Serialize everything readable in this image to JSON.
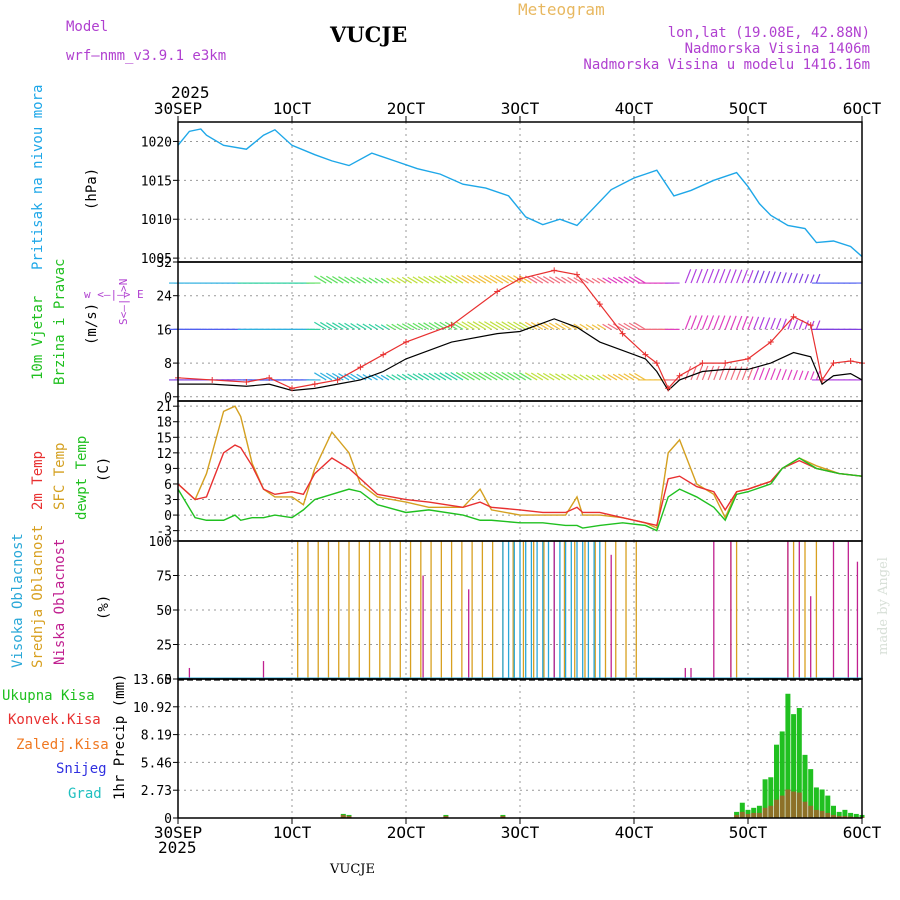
{
  "header": {
    "model_label": "Model",
    "model_name": "wrf—nmm_v3.9.1 e3km",
    "title": "VUCJE",
    "product": "Meteogram",
    "coords": "lon,lat (19.08E, 42.88N)",
    "elevation": "Nadmorska Visina 1406m",
    "model_elevation": "Nadmorska Visina u modelu 1416.16m",
    "year": "2025",
    "footer_station": "VUCJE",
    "credit": "made by Angel"
  },
  "colors": {
    "pressure": "#1ea7e8",
    "wind_speed_max": "#e83030",
    "wind_speed": "#000000",
    "t2m": "#e83030",
    "tsfc": "#d4a020",
    "dewpt": "#20c020",
    "cloud_high": "#2aa8d8",
    "cloud_mid": "#d8a020",
    "cloud_low": "#c02090",
    "precip_total": "#20c020",
    "precip_conv": "#e83030",
    "precip_frozen": "#f07820",
    "snow": "#3030e0",
    "hail": "#20c0c0"
  },
  "panel_labels": {
    "pressure": [
      "Pritisak na nivou mora",
      "(hPa)"
    ],
    "wind": [
      "10m Vjetar",
      "Brzina i Pravac",
      "(m/s)"
    ],
    "wind_compass": "w  <—|—>  E",
    "wind_compass_v": "S<—|—>N",
    "temp": [
      "2m Temp",
      "SFC Temp",
      "dewpt Temp",
      "(C)"
    ],
    "cloud": [
      "Visoka Oblacnost",
      "Srednja Oblacnost",
      "Niska Oblacnost",
      "(%)"
    ],
    "precip_legend": [
      "Ukupna Kisa",
      "Konvek.Kisa",
      "Zaledj.Kisa",
      "Snijeg",
      "Grad"
    ],
    "precip_axis": "1hr Precip (mm)"
  },
  "chart_data": {
    "type": "meteogram",
    "x_ticks": [
      "30SEP",
      "1OCT",
      "2OCT",
      "3OCT",
      "4OCT",
      "5OCT",
      "6OCT"
    ],
    "x_range_days": [
      0,
      6
    ],
    "pressure": {
      "ylabel": "(hPa)",
      "ylim": [
        1004.5,
        1022.5
      ],
      "yticks": [
        1005,
        1010,
        1015,
        1020
      ],
      "x": [
        0,
        0.1,
        0.2,
        0.25,
        0.4,
        0.6,
        0.75,
        0.85,
        1.0,
        1.2,
        1.35,
        1.5,
        1.7,
        1.9,
        2.1,
        2.3,
        2.5,
        2.7,
        2.9,
        3.05,
        3.2,
        3.35,
        3.5,
        3.65,
        3.8,
        4.0,
        4.1,
        4.2,
        4.35,
        4.5,
        4.7,
        4.9,
        5.0,
        5.1,
        5.2,
        5.35,
        5.5,
        5.6,
        5.75,
        5.9,
        6.0
      ],
      "values": [
        1019.5,
        1021.3,
        1021.6,
        1020.8,
        1019.5,
        1019.0,
        1020.8,
        1021.5,
        1019.5,
        1018.3,
        1017.5,
        1016.9,
        1018.5,
        1017.5,
        1016.5,
        1015.8,
        1014.5,
        1014.0,
        1013.0,
        1010.3,
        1009.3,
        1010.0,
        1009.2,
        1011.5,
        1013.8,
        1015.3,
        1015.8,
        1016.3,
        1013.0,
        1013.7,
        1015.0,
        1016.0,
        1014.2,
        1012.0,
        1010.5,
        1009.2,
        1008.8,
        1007.0,
        1007.2,
        1006.5,
        1005.2
      ]
    },
    "wind": {
      "ylabel": "(m/s)",
      "ylim": [
        -1,
        32
      ],
      "yticks": [
        0,
        8,
        16,
        24,
        32
      ],
      "x": [
        0,
        0.3,
        0.6,
        0.8,
        1.0,
        1.2,
        1.4,
        1.6,
        1.8,
        2.0,
        2.4,
        2.8,
        3.0,
        3.3,
        3.5,
        3.7,
        3.9,
        4.1,
        4.2,
        4.3,
        4.4,
        4.6,
        4.8,
        5.0,
        5.2,
        5.4,
        5.55,
        5.65,
        5.75,
        5.9,
        6.0
      ],
      "speed": [
        3,
        3,
        2.5,
        3,
        1.5,
        2,
        3,
        4,
        6,
        9,
        13,
        15,
        15.5,
        18.5,
        16.5,
        13,
        11,
        9,
        6,
        1.5,
        4,
        6,
        6.5,
        6.5,
        8,
        10.5,
        9.5,
        3,
        5,
        5.5,
        4
      ],
      "speed_max": [
        4.5,
        4,
        3.5,
        4.5,
        2,
        3,
        4,
        7,
        10,
        13,
        17,
        25,
        28,
        30,
        29,
        22,
        15,
        10,
        8,
        2,
        5,
        8,
        8,
        9,
        13,
        19,
        17,
        4,
        8,
        8.5,
        8
      ],
      "barb_rows": [
        4,
        16,
        27
      ]
    },
    "temperature": {
      "ylabel": "(C)",
      "ylim": [
        -5,
        22
      ],
      "yticks": [
        -3,
        0,
        3,
        6,
        9,
        12,
        15,
        18,
        21
      ],
      "x": [
        0,
        0.15,
        0.25,
        0.4,
        0.5,
        0.55,
        0.65,
        0.75,
        0.85,
        1.0,
        1.1,
        1.2,
        1.35,
        1.5,
        1.6,
        1.75,
        2.0,
        2.2,
        2.5,
        2.65,
        2.75,
        3.0,
        3.2,
        3.4,
        3.5,
        3.55,
        3.7,
        3.9,
        4.1,
        4.2,
        4.3,
        4.4,
        4.55,
        4.7,
        4.8,
        4.9,
        5.0,
        5.2,
        5.3,
        5.45,
        5.6,
        5.8,
        6.0
      ],
      "t2m": [
        6,
        3,
        3.5,
        12,
        13.5,
        13,
        9.5,
        5,
        4,
        4.5,
        4,
        8,
        11,
        9,
        7,
        4,
        3,
        2.5,
        1.5,
        2.5,
        1.5,
        1,
        0.5,
        0.5,
        1.5,
        0.5,
        0.5,
        -0.5,
        -1.5,
        -2,
        7,
        7.5,
        5.5,
        4.5,
        1,
        4.5,
        5,
        6.5,
        9,
        10.5,
        9,
        8,
        7.5
      ],
      "tsfc": [
        6,
        3,
        8,
        20,
        21,
        19,
        10,
        5,
        3.5,
        3.5,
        2,
        9,
        16,
        12,
        6,
        3.5,
        2.5,
        1.5,
        1.5,
        5,
        1,
        0,
        0,
        0,
        3.5,
        0,
        0,
        -0.5,
        -1.5,
        -2.5,
        12,
        14.5,
        6,
        4,
        -0.5,
        4.5,
        5,
        6.5,
        9,
        11,
        9.5,
        8,
        7.5
      ],
      "dewpt": [
        5,
        -0.5,
        -1,
        -1,
        0,
        -1,
        -0.5,
        -0.5,
        0,
        -0.5,
        1,
        3,
        4,
        5,
        4.5,
        2,
        0.5,
        1,
        0,
        -1,
        -1,
        -1.5,
        -1.5,
        -2,
        -2,
        -2.5,
        -2,
        -1.5,
        -2,
        -3,
        3.5,
        5,
        3.5,
        1.5,
        -1,
        4,
        4.5,
        6,
        9,
        11,
        9,
        8,
        7.5
      ]
    },
    "cloud": {
      "ylabel": "(%)",
      "ylim": [
        0,
        100
      ],
      "yticks": [
        0,
        25,
        50,
        75,
        100
      ],
      "bars_mid": {
        "x_start": 1.05,
        "x_end": 4.1,
        "step": 0.09,
        "value": 100
      },
      "bars_high": {
        "x_start": 2.85,
        "x_end": 3.7,
        "step": 0.05,
        "value": 100
      },
      "bars_low": [
        {
          "x": 0.1,
          "v": 8
        },
        {
          "x": 0.75,
          "v": 13
        },
        {
          "x": 2.15,
          "v": 75
        },
        {
          "x": 2.55,
          "v": 65
        },
        {
          "x": 3.3,
          "v": 100
        },
        {
          "x": 3.8,
          "v": 90
        },
        {
          "x": 4.45,
          "v": 8
        },
        {
          "x": 4.5,
          "v": 8
        },
        {
          "x": 4.7,
          "v": 100
        },
        {
          "x": 4.85,
          "v": 100
        },
        {
          "x": 5.35,
          "v": 100
        },
        {
          "x": 5.45,
          "v": 100
        },
        {
          "x": 5.55,
          "v": 60
        },
        {
          "x": 5.75,
          "v": 100
        },
        {
          "x": 5.88,
          "v": 100
        },
        {
          "x": 5.96,
          "v": 85
        }
      ],
      "bars_mid_late": [
        4.85,
        4.9,
        5.35,
        5.4,
        5.5,
        5.6
      ]
    },
    "precip": {
      "ylabel": "1hr Precip (mm)",
      "ylim": [
        0,
        13.65
      ],
      "yticks": [
        0,
        2.73,
        5.46,
        8.19,
        10.92,
        13.65
      ],
      "x": [
        1.45,
        1.5,
        2.35,
        2.85,
        4.9,
        4.95,
        5.0,
        5.05,
        5.1,
        5.15,
        5.2,
        5.25,
        5.3,
        5.35,
        5.4,
        5.45,
        5.5,
        5.55,
        5.6,
        5.65,
        5.7,
        5.75,
        5.8,
        5.85,
        5.9,
        5.95,
        6.0
      ],
      "total": [
        0.4,
        0.3,
        0.3,
        0.3,
        0.6,
        1.5,
        0.8,
        1.0,
        1.2,
        3.8,
        4.0,
        7.2,
        8.5,
        12.2,
        10.2,
        10.8,
        6.2,
        4.8,
        3.0,
        2.8,
        2.2,
        1.2,
        0.6,
        0.8,
        0.5,
        0.4,
        0.3
      ],
      "convective": [
        0.3,
        0.2,
        0.2,
        0.2,
        0.3,
        0.6,
        0.4,
        0.5,
        0.5,
        1.0,
        1.2,
        1.8,
        2.2,
        2.8,
        2.6,
        2.5,
        1.6,
        1.2,
        0.8,
        0.7,
        0.5,
        0.3,
        0.2,
        0.2,
        0.15,
        0.1,
        0.1
      ]
    }
  }
}
